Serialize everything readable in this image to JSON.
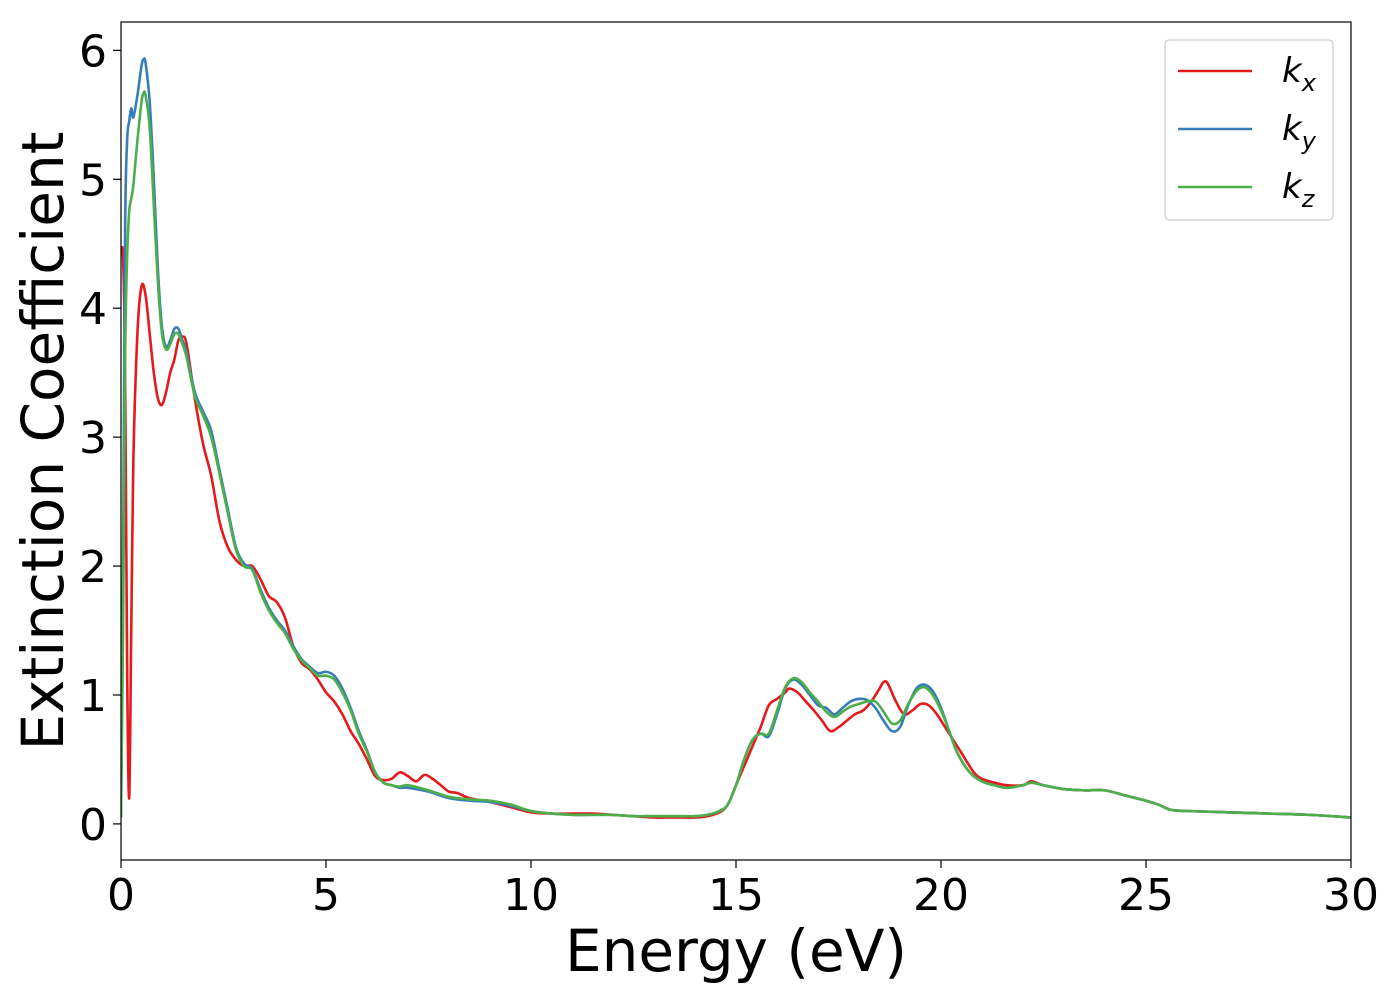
{
  "chart_data": {
    "type": "line",
    "xlabel": "Energy (eV)",
    "ylabel": "Extinction Coefficient",
    "xlim": [
      0,
      30
    ],
    "ylim": [
      -0.28,
      6.22
    ],
    "xticks": [
      0,
      5,
      10,
      15,
      20,
      25,
      30
    ],
    "yticks": [
      0,
      1,
      2,
      3,
      4,
      5,
      6
    ],
    "grid": false,
    "legend_position": "top-right",
    "series": [
      {
        "name": "k_x",
        "base": "k",
        "sub": "x",
        "color": "#e41a1c",
        "x": [
          0,
          0.05,
          0.1,
          0.15,
          0.2,
          0.25,
          0.3,
          0.4,
          0.5,
          0.6,
          0.7,
          0.8,
          0.9,
          1.0,
          1.1,
          1.2,
          1.3,
          1.4,
          1.5,
          1.6,
          1.8,
          2.0,
          2.2,
          2.4,
          2.6,
          2.8,
          3.0,
          3.2,
          3.4,
          3.6,
          3.8,
          4.0,
          4.2,
          4.4,
          4.6,
          4.8,
          5.0,
          5.2,
          5.4,
          5.6,
          5.8,
          6.0,
          6.2,
          6.4,
          6.6,
          6.8,
          7.0,
          7.2,
          7.4,
          7.6,
          7.8,
          8.0,
          8.2,
          8.5,
          9.0,
          9.5,
          10.0,
          10.5,
          11.0,
          11.5,
          12.0,
          12.5,
          13.0,
          13.5,
          14.0,
          14.3,
          14.6,
          14.8,
          15.0,
          15.2,
          15.4,
          15.6,
          15.8,
          16.0,
          16.2,
          16.3,
          16.5,
          16.7,
          16.9,
          17.1,
          17.3,
          17.5,
          17.7,
          17.9,
          18.1,
          18.3,
          18.5,
          18.6,
          18.7,
          18.9,
          19.1,
          19.3,
          19.5,
          19.7,
          19.9,
          20.1,
          20.3,
          20.5,
          20.8,
          21.0,
          21.3,
          21.6,
          22.0,
          22.2,
          22.5,
          23.0,
          23.5,
          24.0,
          24.5,
          25.0,
          25.3,
          25.6,
          26.0,
          27.0,
          28.0,
          29.0,
          30.0
        ],
        "y": [
          4.42,
          4.4,
          3.5,
          1.2,
          0.2,
          1.5,
          2.8,
          3.8,
          4.17,
          4.1,
          3.8,
          3.5,
          3.3,
          3.25,
          3.35,
          3.5,
          3.6,
          3.75,
          3.78,
          3.72,
          3.3,
          2.95,
          2.7,
          2.35,
          2.15,
          2.05,
          2.0,
          2.0,
          1.9,
          1.77,
          1.72,
          1.6,
          1.38,
          1.25,
          1.2,
          1.12,
          1.02,
          0.95,
          0.85,
          0.72,
          0.62,
          0.5,
          0.37,
          0.34,
          0.35,
          0.4,
          0.37,
          0.33,
          0.38,
          0.35,
          0.3,
          0.25,
          0.24,
          0.2,
          0.17,
          0.13,
          0.09,
          0.08,
          0.08,
          0.08,
          0.07,
          0.06,
          0.05,
          0.05,
          0.05,
          0.06,
          0.09,
          0.15,
          0.3,
          0.45,
          0.6,
          0.75,
          0.92,
          0.97,
          1.02,
          1.05,
          1.02,
          0.95,
          0.88,
          0.8,
          0.72,
          0.75,
          0.8,
          0.85,
          0.88,
          0.95,
          1.05,
          1.1,
          1.09,
          0.95,
          0.85,
          0.88,
          0.93,
          0.92,
          0.85,
          0.75,
          0.65,
          0.55,
          0.4,
          0.35,
          0.32,
          0.3,
          0.3,
          0.33,
          0.3,
          0.27,
          0.26,
          0.26,
          0.22,
          0.18,
          0.15,
          0.11,
          0.1,
          0.09,
          0.08,
          0.07,
          0.05
        ]
      },
      {
        "name": "k_y",
        "base": "k",
        "sub": "y",
        "color": "#377eb8",
        "x": [
          0,
          0.05,
          0.1,
          0.15,
          0.2,
          0.25,
          0.3,
          0.4,
          0.5,
          0.55,
          0.6,
          0.7,
          0.8,
          0.9,
          1.0,
          1.1,
          1.2,
          1.3,
          1.4,
          1.5,
          1.6,
          1.8,
          2.0,
          2.2,
          2.4,
          2.6,
          2.8,
          3.0,
          3.2,
          3.4,
          3.6,
          3.8,
          4.0,
          4.2,
          4.4,
          4.6,
          4.8,
          5.0,
          5.2,
          5.4,
          5.6,
          5.8,
          6.0,
          6.2,
          6.4,
          6.6,
          6.8,
          7.0,
          7.5,
          8.0,
          8.5,
          9.0,
          9.5,
          10.0,
          10.5,
          11.0,
          11.5,
          12.0,
          12.5,
          13.0,
          13.5,
          14.0,
          14.3,
          14.6,
          14.8,
          15.0,
          15.2,
          15.4,
          15.6,
          15.8,
          16.0,
          16.2,
          16.4,
          16.6,
          16.8,
          17.0,
          17.2,
          17.4,
          17.6,
          17.8,
          18.0,
          18.2,
          18.4,
          18.6,
          18.8,
          19.0,
          19.2,
          19.4,
          19.6,
          19.8,
          20.0,
          20.2,
          20.4,
          20.7,
          21.0,
          21.3,
          21.6,
          22.0,
          22.2,
          22.5,
          23.0,
          23.5,
          24.0,
          24.5,
          25.0,
          25.3,
          25.6,
          26.0,
          27.0,
          28.0,
          29.0,
          30.0
        ],
        "y": [
          0.05,
          2.0,
          4.6,
          5.3,
          5.45,
          5.55,
          5.48,
          5.65,
          5.88,
          5.93,
          5.9,
          5.6,
          5.0,
          4.3,
          3.85,
          3.7,
          3.75,
          3.84,
          3.84,
          3.75,
          3.65,
          3.35,
          3.2,
          3.05,
          2.75,
          2.45,
          2.15,
          2.02,
          1.98,
          1.82,
          1.68,
          1.58,
          1.5,
          1.38,
          1.28,
          1.22,
          1.17,
          1.18,
          1.15,
          1.05,
          0.9,
          0.72,
          0.57,
          0.4,
          0.32,
          0.3,
          0.28,
          0.28,
          0.25,
          0.2,
          0.18,
          0.17,
          0.14,
          0.1,
          0.08,
          0.07,
          0.07,
          0.07,
          0.06,
          0.06,
          0.06,
          0.06,
          0.07,
          0.1,
          0.15,
          0.3,
          0.5,
          0.65,
          0.7,
          0.68,
          0.85,
          1.05,
          1.12,
          1.08,
          1.0,
          0.92,
          0.9,
          0.85,
          0.9,
          0.95,
          0.97,
          0.96,
          0.9,
          0.8,
          0.72,
          0.75,
          0.92,
          1.05,
          1.08,
          1.03,
          0.9,
          0.72,
          0.55,
          0.4,
          0.33,
          0.3,
          0.28,
          0.3,
          0.32,
          0.3,
          0.27,
          0.26,
          0.26,
          0.22,
          0.18,
          0.15,
          0.11,
          0.1,
          0.09,
          0.08,
          0.07,
          0.05
        ]
      },
      {
        "name": "k_z",
        "base": "k",
        "sub": "z",
        "color": "#4daf4a",
        "x": [
          0,
          0.05,
          0.1,
          0.15,
          0.2,
          0.25,
          0.3,
          0.4,
          0.5,
          0.55,
          0.6,
          0.7,
          0.8,
          0.9,
          1.0,
          1.1,
          1.2,
          1.3,
          1.4,
          1.5,
          1.6,
          1.8,
          2.0,
          2.2,
          2.4,
          2.6,
          2.8,
          3.0,
          3.2,
          3.4,
          3.6,
          3.8,
          4.0,
          4.2,
          4.4,
          4.6,
          4.8,
          5.0,
          5.2,
          5.4,
          5.6,
          5.8,
          6.0,
          6.2,
          6.4,
          6.6,
          6.8,
          7.0,
          7.5,
          8.0,
          8.5,
          9.0,
          9.5,
          10.0,
          10.5,
          11.0,
          11.5,
          12.0,
          12.5,
          13.0,
          13.5,
          14.0,
          14.3,
          14.6,
          14.8,
          15.0,
          15.2,
          15.4,
          15.6,
          15.8,
          16.0,
          16.2,
          16.4,
          16.6,
          16.8,
          17.0,
          17.2,
          17.4,
          17.6,
          17.8,
          18.0,
          18.2,
          18.4,
          18.6,
          18.8,
          19.0,
          19.2,
          19.4,
          19.6,
          19.8,
          20.0,
          20.2,
          20.4,
          20.7,
          21.0,
          21.3,
          21.6,
          22.0,
          22.2,
          22.5,
          23.0,
          23.5,
          24.0,
          24.5,
          25.0,
          25.3,
          25.6,
          26.0,
          27.0,
          28.0,
          29.0,
          30.0
        ],
        "y": [
          0.05,
          1.5,
          3.6,
          4.4,
          4.75,
          4.85,
          4.95,
          5.3,
          5.6,
          5.67,
          5.65,
          5.4,
          4.8,
          4.2,
          3.8,
          3.68,
          3.72,
          3.8,
          3.8,
          3.72,
          3.62,
          3.32,
          3.17,
          3.0,
          2.72,
          2.42,
          2.13,
          2.0,
          1.97,
          1.8,
          1.66,
          1.56,
          1.48,
          1.36,
          1.27,
          1.21,
          1.15,
          1.15,
          1.12,
          1.02,
          0.88,
          0.7,
          0.56,
          0.4,
          0.32,
          0.3,
          0.29,
          0.3,
          0.26,
          0.21,
          0.19,
          0.18,
          0.15,
          0.1,
          0.08,
          0.07,
          0.07,
          0.07,
          0.06,
          0.06,
          0.06,
          0.06,
          0.07,
          0.1,
          0.15,
          0.3,
          0.5,
          0.65,
          0.7,
          0.7,
          0.88,
          1.06,
          1.13,
          1.1,
          1.02,
          0.95,
          0.87,
          0.83,
          0.87,
          0.91,
          0.93,
          0.95,
          0.95,
          0.87,
          0.78,
          0.8,
          0.93,
          1.03,
          1.06,
          1.0,
          0.88,
          0.72,
          0.55,
          0.4,
          0.33,
          0.3,
          0.28,
          0.3,
          0.32,
          0.3,
          0.27,
          0.26,
          0.26,
          0.22,
          0.18,
          0.15,
          0.11,
          0.1,
          0.09,
          0.08,
          0.07,
          0.05
        ]
      }
    ]
  }
}
